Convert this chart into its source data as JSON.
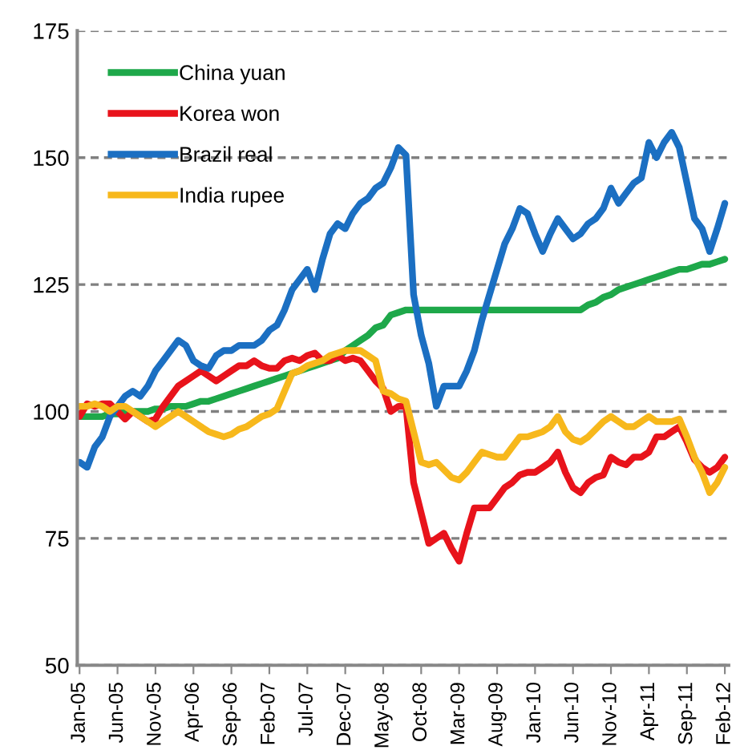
{
  "chart_data": {
    "type": "line",
    "categories": [
      "Jan-05",
      null,
      null,
      null,
      null,
      "Jun-05",
      null,
      null,
      null,
      null,
      "Nov-05",
      null,
      null,
      null,
      null,
      "Apr-06",
      null,
      null,
      null,
      null,
      "Sep-06",
      null,
      null,
      null,
      null,
      "Feb-07",
      null,
      null,
      null,
      null,
      "Jul-07",
      null,
      null,
      null,
      null,
      "Dec-07",
      null,
      null,
      null,
      null,
      "May-08",
      null,
      null,
      null,
      null,
      "Oct-08",
      null,
      null,
      null,
      null,
      "Mar-09",
      null,
      null,
      null,
      null,
      "Aug-09",
      null,
      null,
      null,
      null,
      "Jan-10",
      null,
      null,
      null,
      null,
      "Jun-10",
      null,
      null,
      null,
      null,
      "Nov-10",
      null,
      null,
      null,
      null,
      "Apr-11",
      null,
      null,
      null,
      null,
      "Sep-11",
      null,
      null,
      null,
      null,
      "Feb-12"
    ],
    "series": [
      {
        "name": "China yuan",
        "color": "#1ea84a",
        "values": [
          99,
          99,
          99,
          99,
          99.5,
          99.5,
          100,
          100,
          100,
          100,
          100.5,
          100.5,
          101,
          101,
          101,
          101.5,
          102,
          102,
          102.5,
          103,
          103.5,
          104,
          104.5,
          105,
          105.5,
          106,
          106.5,
          107,
          107.5,
          108,
          108.5,
          109,
          109.5,
          110,
          110.5,
          112,
          113,
          114,
          115,
          116.5,
          117,
          119,
          119.5,
          120,
          120,
          120,
          120,
          120,
          120,
          120,
          120,
          120,
          120,
          120,
          120,
          120,
          120,
          120,
          120,
          120,
          120,
          120,
          120,
          120,
          120,
          120,
          120,
          121,
          121.5,
          122.5,
          123,
          124,
          124.5,
          125,
          125.5,
          126,
          126.5,
          127,
          127.5,
          128,
          128,
          128.5,
          129,
          129,
          129.5,
          130
        ]
      },
      {
        "name": "Korea won",
        "color": "#e8131b",
        "values": [
          99,
          101.5,
          101,
          101.5,
          101.5,
          100,
          98.5,
          100,
          99,
          98,
          98.5,
          101,
          103,
          105,
          106,
          107,
          108,
          107,
          106,
          107,
          108,
          109,
          109,
          110,
          109,
          108.5,
          108.5,
          110,
          110.5,
          110,
          111,
          111.5,
          110,
          110,
          111,
          110,
          110.5,
          110,
          108,
          106,
          104.5,
          100,
          101,
          101,
          86,
          80,
          74,
          75,
          76,
          73,
          70.5,
          76,
          81,
          81,
          81,
          83,
          85,
          86,
          87.5,
          88,
          88,
          89,
          90,
          92,
          88,
          85,
          84,
          86,
          87,
          87.5,
          91,
          90,
          89.5,
          91,
          91,
          92,
          95,
          95,
          96,
          97,
          94,
          90.5,
          89,
          88,
          89,
          91
        ]
      },
      {
        "name": "Brazil real",
        "color": "#1b6fc2",
        "values": [
          90,
          89,
          93,
          95,
          99,
          101,
          103,
          104,
          103,
          105,
          108,
          110,
          112,
          114,
          113,
          110,
          109,
          108.5,
          111,
          112,
          112,
          113,
          113,
          113,
          114,
          116,
          117,
          120,
          124,
          126,
          128,
          124,
          130,
          135,
          137,
          136,
          139,
          141,
          142,
          144,
          145,
          148,
          152,
          150.5,
          123,
          115,
          109.5,
          101,
          105,
          105,
          105,
          108,
          112,
          118,
          123,
          128,
          133,
          136,
          140,
          139,
          135,
          131.5,
          135,
          138,
          136,
          134,
          135,
          137,
          138,
          140,
          144,
          141,
          143,
          145,
          146,
          153,
          150,
          153,
          155,
          152,
          145,
          138,
          136,
          131.5,
          136,
          141
        ]
      },
      {
        "name": "India rupee",
        "color": "#f7b81c",
        "values": [
          101,
          101,
          101.5,
          101,
          100,
          101,
          101,
          100,
          99,
          98,
          97,
          98,
          99,
          100,
          99,
          98,
          97,
          96,
          95.5,
          95,
          95.5,
          96.5,
          97,
          98,
          99,
          99.5,
          100.5,
          104,
          107.5,
          108,
          109,
          109.5,
          110,
          111,
          111.5,
          112,
          112,
          112,
          111,
          110,
          104,
          103.5,
          102.5,
          102,
          96,
          90,
          89.5,
          90,
          88.5,
          87,
          86.5,
          88,
          90,
          92,
          91.5,
          91,
          91,
          93,
          95,
          95,
          95.5,
          96,
          97,
          99,
          96,
          94.5,
          94,
          95,
          96.5,
          98,
          99,
          98,
          97,
          97,
          98,
          99,
          98,
          98,
          98,
          98.5,
          95,
          91,
          88,
          84,
          86,
          89
        ]
      }
    ],
    "ylim": [
      50,
      175
    ],
    "yticks": [
      50,
      75,
      100,
      125,
      150,
      175
    ],
    "grid": "y",
    "legend": "top left",
    "marker": "none",
    "line_style": "solid"
  }
}
